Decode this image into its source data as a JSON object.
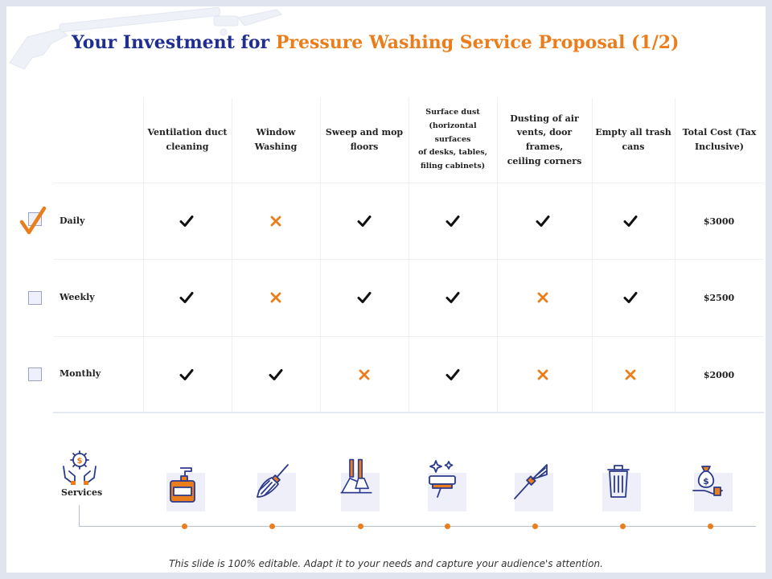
{
  "title": {
    "part1": "Your Investment for ",
    "part2": "Pressure Washing Service Proposal (1/2)"
  },
  "columns": [
    {
      "id": "ventilation",
      "lines": [
        "Ventilation duct",
        "cleaning"
      ]
    },
    {
      "id": "window",
      "lines": [
        "Window",
        "Washing"
      ]
    },
    {
      "id": "sweep",
      "lines": [
        "Sweep and mop",
        "floors"
      ]
    },
    {
      "id": "surface",
      "lines": [
        "Surface dust",
        "(horizontal surfaces",
        "of desks, tables,",
        "filing cabinets)"
      ]
    },
    {
      "id": "vents",
      "lines": [
        "Dusting of air",
        "vents, door frames,",
        "ceiling corners"
      ]
    },
    {
      "id": "trash",
      "lines": [
        "Empty all trash",
        "cans"
      ]
    },
    {
      "id": "total",
      "lines": [
        "Total Cost (Tax",
        "Inclusive)"
      ]
    }
  ],
  "rows": [
    {
      "label": "Daily",
      "selected": true,
      "marks": [
        "check",
        "cross",
        "check",
        "check",
        "check",
        "check"
      ],
      "price": "$3000"
    },
    {
      "label": "Weekly",
      "selected": false,
      "marks": [
        "check",
        "cross",
        "check",
        "check",
        "cross",
        "check"
      ],
      "price": "$2500"
    },
    {
      "label": "Monthly",
      "selected": false,
      "marks": [
        "check",
        "check",
        "cross",
        "check",
        "cross",
        "cross"
      ],
      "price": "$2000"
    }
  ],
  "services_label": "Services",
  "service_icons": [
    "soap-dispenser-icon",
    "broom-icon",
    "dustpan-and-brush-icon",
    "window-squeegee-icon",
    "duster-brush-icon",
    "trash-can-icon",
    "money-bag-hand-icon"
  ],
  "colors": {
    "title_blue": "#1f2e8f",
    "accent_orange": "#ea7e1c",
    "check_black": "#111111",
    "icon_navy": "#2c3a8c"
  },
  "footer": "This slide is 100% editable. Adapt it to your needs and capture your audience's attention."
}
